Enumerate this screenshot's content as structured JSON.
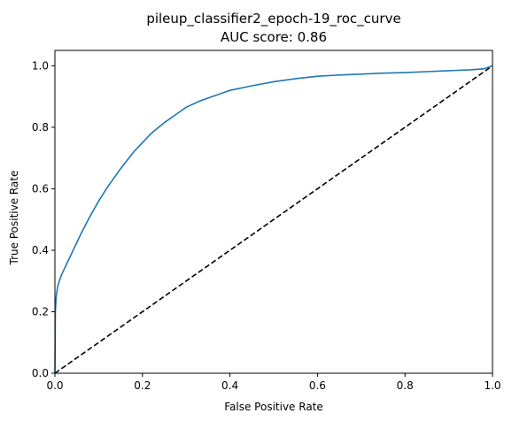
{
  "chart_data": {
    "type": "line",
    "title": "pileup_classifier2_epoch-19_roc_curve",
    "subtitle": "AUC score: 0.86",
    "xlabel": "False Positive Rate",
    "ylabel": "True Positive Rate",
    "xlim": [
      0,
      1
    ],
    "ylim": [
      0,
      1.05
    ],
    "xticks": [
      "0.0",
      "0.2",
      "0.4",
      "0.6",
      "0.8",
      "1.0"
    ],
    "yticks": [
      "0.0",
      "0.2",
      "0.4",
      "0.6",
      "0.8",
      "1.0"
    ],
    "grid": false,
    "legend": "none",
    "series": [
      {
        "color": "#1f77b4",
        "style": "solid",
        "x": [
          0,
          0.001,
          0.003,
          0.006,
          0.01,
          0.015,
          0.02,
          0.03,
          0.04,
          0.05,
          0.06,
          0.08,
          0.1,
          0.12,
          0.15,
          0.18,
          0.2,
          0.22,
          0.25,
          0.28,
          0.3,
          0.33,
          0.36,
          0.4,
          0.45,
          0.5,
          0.55,
          0.6,
          0.65,
          0.7,
          0.75,
          0.8,
          0.85,
          0.9,
          0.95,
          0.98,
          1.0
        ],
        "y": [
          0,
          0.2,
          0.25,
          0.28,
          0.3,
          0.32,
          0.335,
          0.365,
          0.395,
          0.425,
          0.455,
          0.51,
          0.56,
          0.605,
          0.665,
          0.72,
          0.75,
          0.78,
          0.815,
          0.845,
          0.865,
          0.885,
          0.9,
          0.92,
          0.935,
          0.948,
          0.958,
          0.966,
          0.97,
          0.973,
          0.976,
          0.978,
          0.981,
          0.984,
          0.987,
          0.99,
          1.0
        ]
      },
      {
        "color": "#000000",
        "style": "dashed",
        "x": [
          0,
          1
        ],
        "y": [
          0,
          1
        ]
      }
    ]
  }
}
